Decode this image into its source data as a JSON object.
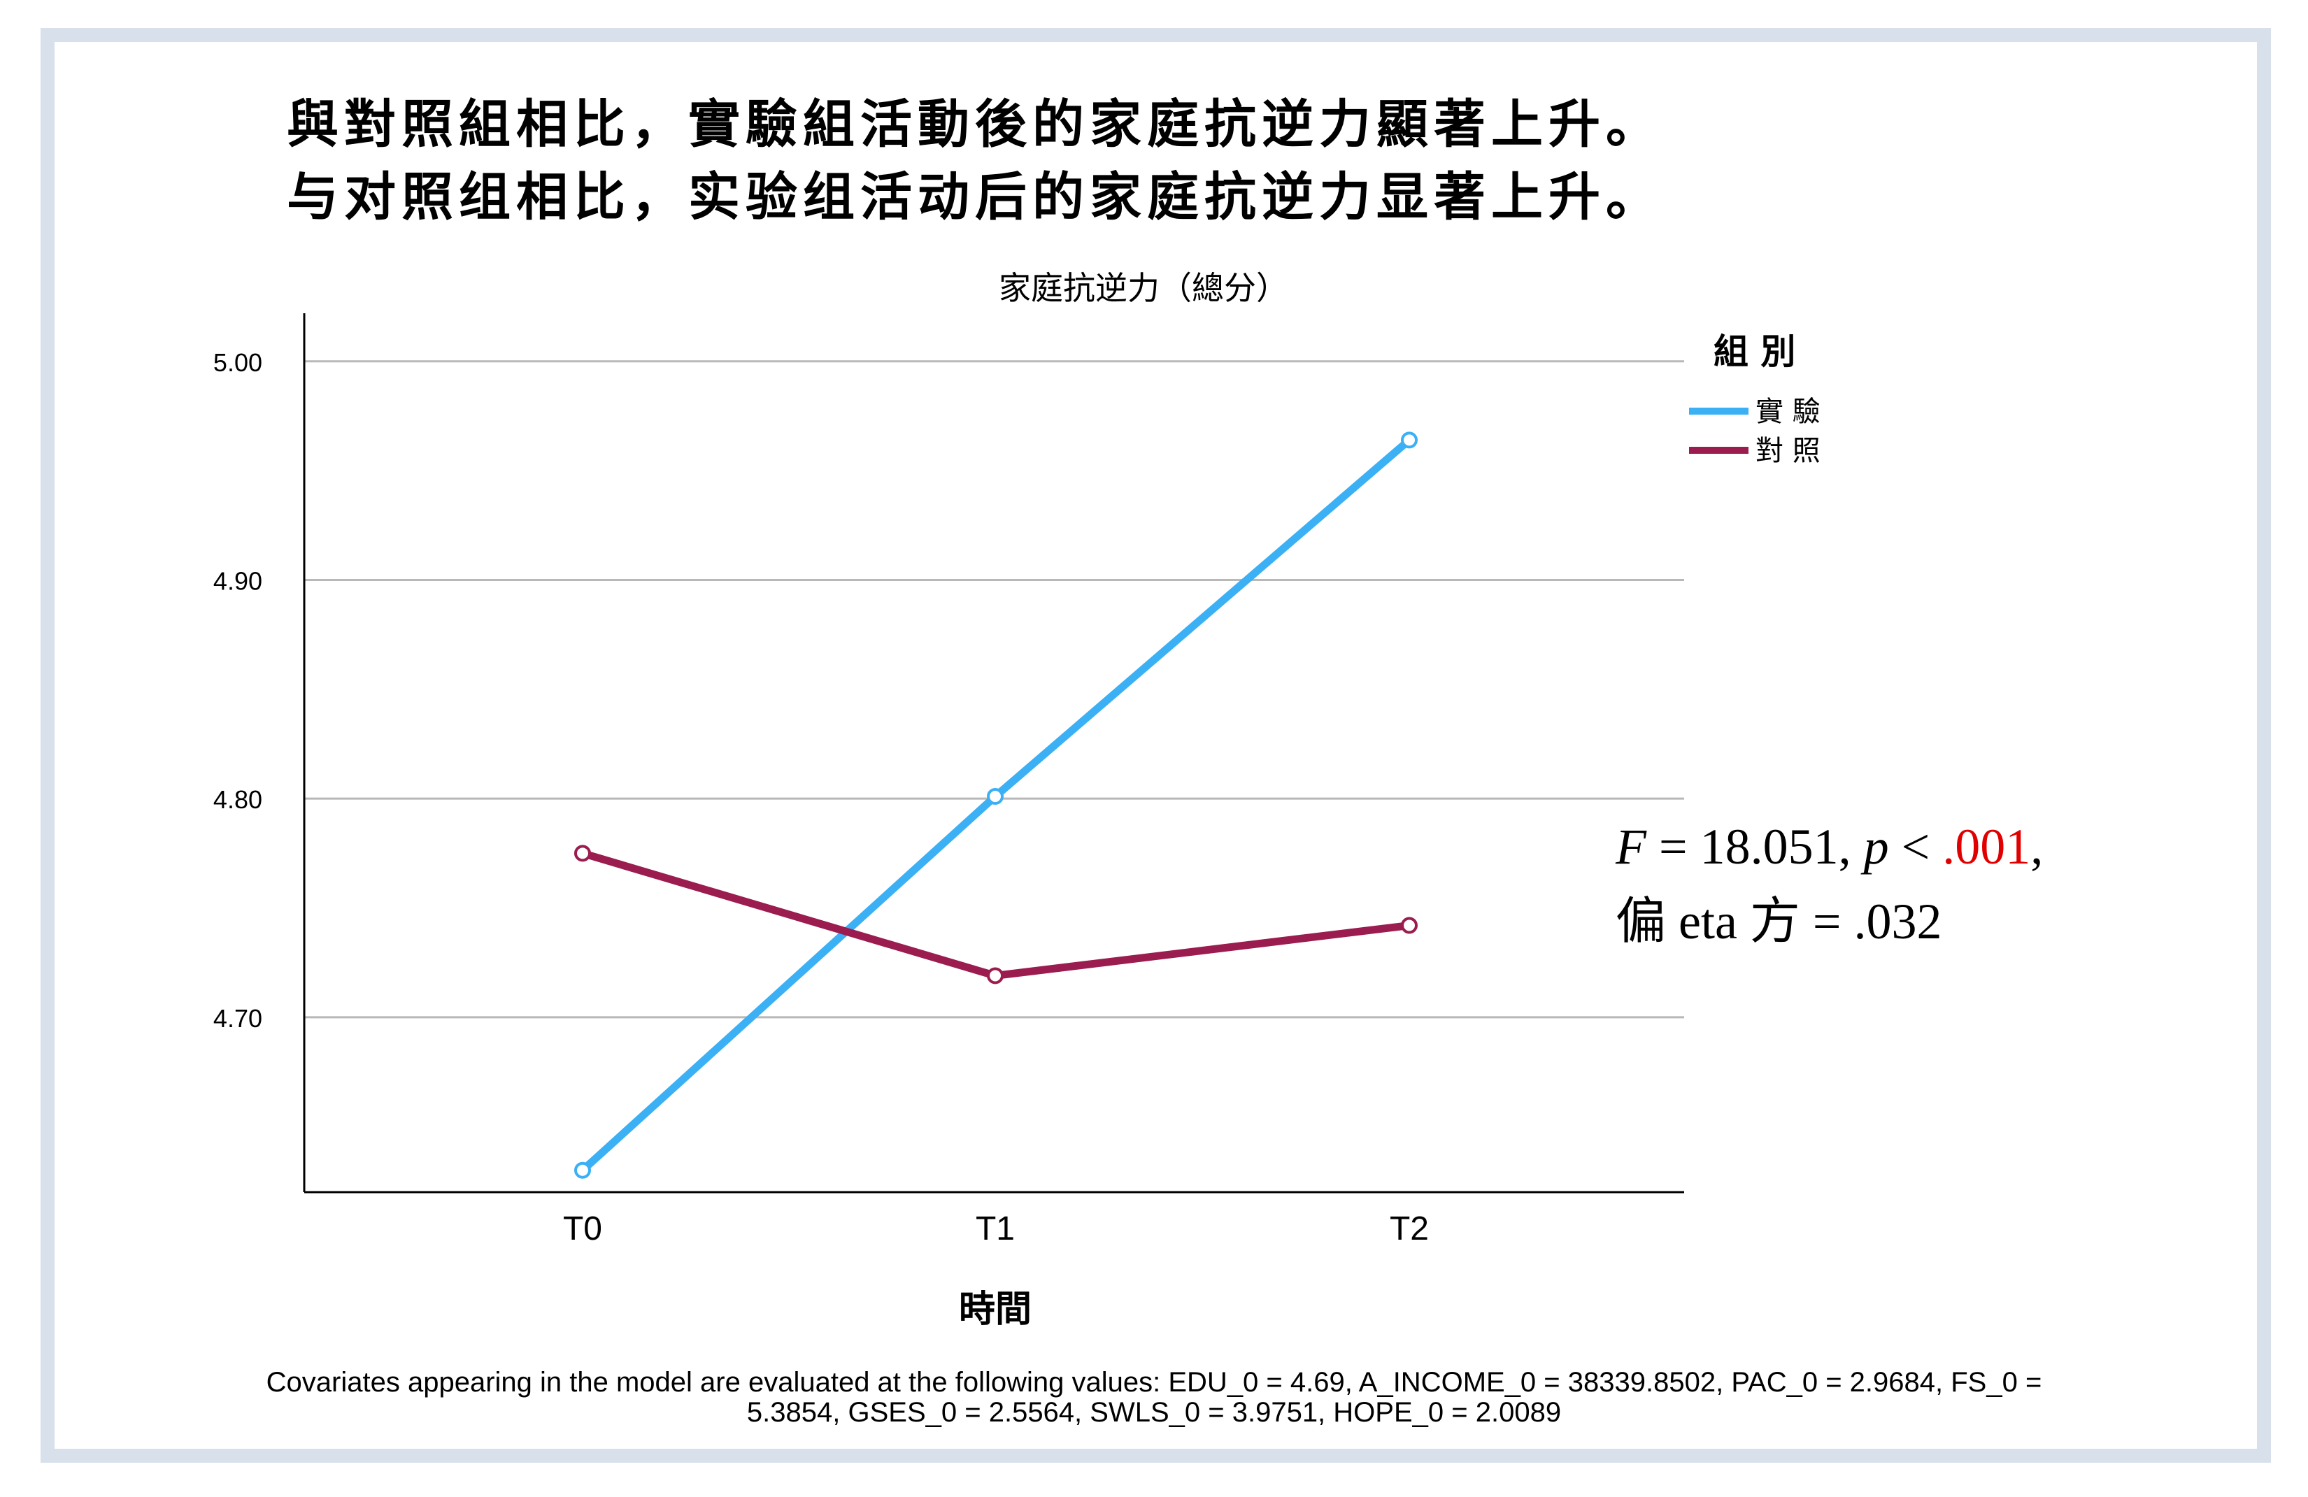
{
  "heading": {
    "line1": "與對照組相比，實驗組活動後的家庭抗逆力顯著上升。",
    "line2": "与对照组相比，实验组活动后的家庭抗逆力显著上升。"
  },
  "stats": {
    "f_label": "F",
    "f_value": " = 18.051, ",
    "p_label": "p",
    "p_op": " < ",
    "p_value": ".001",
    "p_tail": ",",
    "eta_line": "偏 eta 方 = .032"
  },
  "footnote": {
    "line1": "Covariates appearing in the model are evaluated at the following values: EDU_0 = 4.69, A_INCOME_0 = 38339.8502, PAC_0 = 2.9684, FS_0 =",
    "line2": "5.3854, GSES_0 = 2.5564, SWLS_0 = 3.9751, HOPE_0 = 2.0089"
  },
  "chart_data": {
    "type": "line",
    "title": "家庭抗逆力（總分）",
    "xlabel": "時間",
    "ylabel": "",
    "categories": [
      "T0",
      "T1",
      "T2"
    ],
    "yticks": [
      "5.00",
      "4.90",
      "4.80",
      "4.70"
    ],
    "ylim": [
      4.62,
      5.022
    ],
    "grid": true,
    "legend_title": "組 別",
    "legend_position": "right-top",
    "series": [
      {
        "name": "實 驗",
        "color": "#3bb0f5",
        "values": [
          4.63,
          4.801,
          4.964
        ]
      },
      {
        "name": "對 照",
        "color": "#9b1c4f",
        "values": [
          4.775,
          4.719,
          4.742
        ]
      }
    ],
    "colors": {
      "grid": "#b8b8b8",
      "axis": "#000000",
      "stat_red": "#e00000",
      "frame": "#d8e0ec"
    }
  }
}
